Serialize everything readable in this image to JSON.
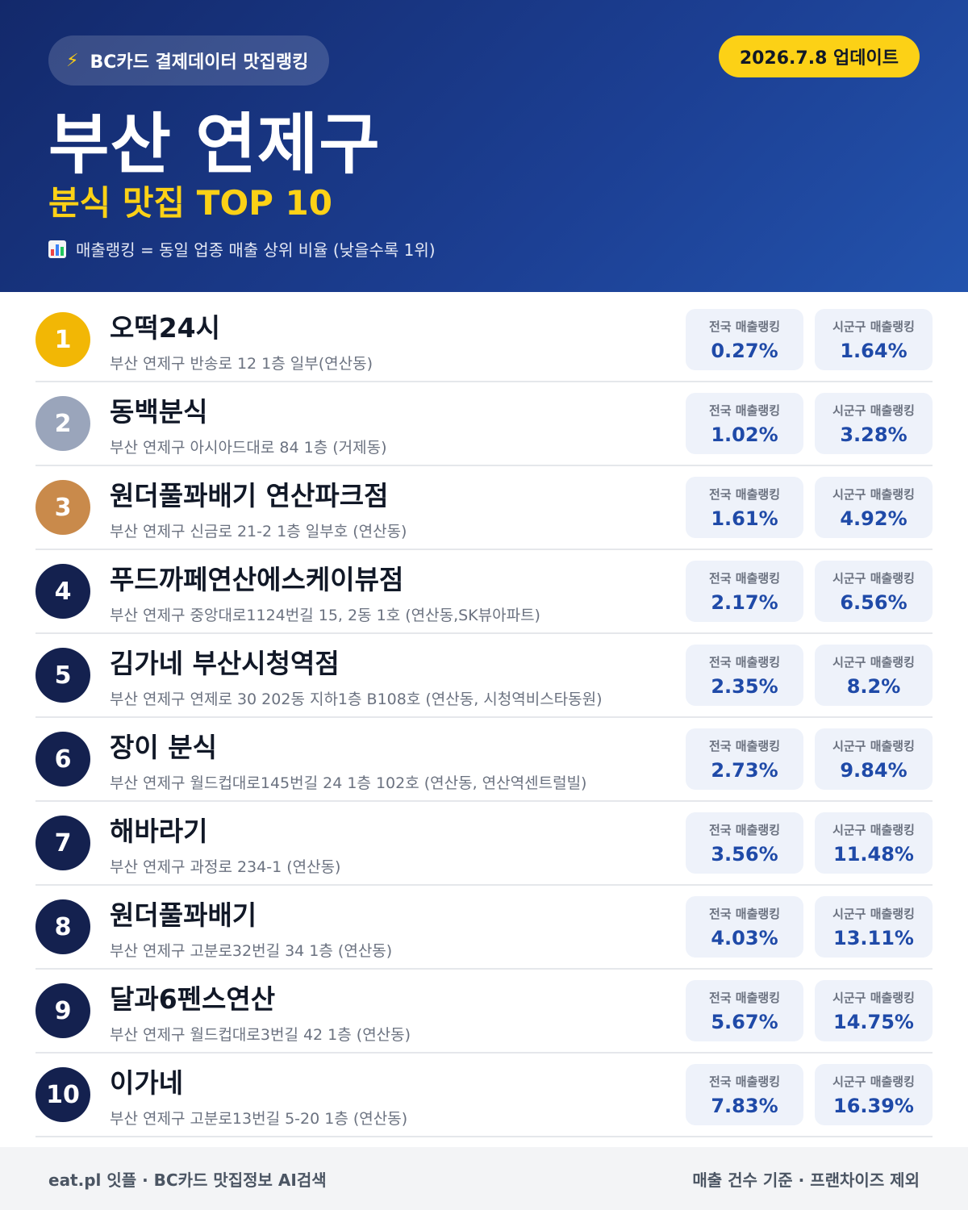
{
  "header": {
    "badge_icon": "lightning-icon",
    "badge_text": "BC카드 결제데이터 맛집랭킹",
    "update_text": "2026.7.8 업데이트",
    "title": "부산 연제구",
    "subtitle": "분식 맛집 TOP 10",
    "note_icon": "bar-chart-icon",
    "note": "매출랭킹 = 동일 업종 매출 상위 비율 (낮을수록 1위)"
  },
  "colors": {
    "header_bg": "#1c3f93",
    "accent_yellow": "#fcd116",
    "rank_gold": "#f2b705",
    "rank_silver": "#9aa5bb",
    "rank_bronze": "#c98a4b",
    "rank_default": "#14214f",
    "value_blue": "#1f4aa8"
  },
  "labels": {
    "national": "전국 매출랭킹",
    "district": "시군구 매출랭킹"
  },
  "items": [
    {
      "rank": "1",
      "name": "오떡24시",
      "address": "부산 연제구 반송로 12 1층 일부(연산동)",
      "national": "0.27%",
      "district": "1.64%"
    },
    {
      "rank": "2",
      "name": "동백분식",
      "address": "부산 연제구 아시아드대로 84 1층 (거제동)",
      "national": "1.02%",
      "district": "3.28%"
    },
    {
      "rank": "3",
      "name": "원더풀꽈배기 연산파크점",
      "address": "부산 연제구 신금로 21-2 1층 일부호 (연산동)",
      "national": "1.61%",
      "district": "4.92%"
    },
    {
      "rank": "4",
      "name": "푸드까페연산에스케이뷰점",
      "address": "부산 연제구 중앙대로1124번길 15, 2동 1호 (연산동,SK뷰아파트)",
      "national": "2.17%",
      "district": "6.56%"
    },
    {
      "rank": "5",
      "name": "김가네 부산시청역점",
      "address": "부산 연제구 연제로 30 202동 지하1층 B108호 (연산동, 시청역비스타동원)",
      "national": "2.35%",
      "district": "8.2%"
    },
    {
      "rank": "6",
      "name": "장이 분식",
      "address": "부산 연제구 월드컵대로145번길 24 1층 102호 (연산동, 연산역센트럴빌)",
      "national": "2.73%",
      "district": "9.84%"
    },
    {
      "rank": "7",
      "name": "해바라기",
      "address": "부산 연제구 과정로 234-1 (연산동)",
      "national": "3.56%",
      "district": "11.48%"
    },
    {
      "rank": "8",
      "name": "원더풀꽈배기",
      "address": "부산 연제구 고분로32번길 34 1층 (연산동)",
      "national": "4.03%",
      "district": "13.11%"
    },
    {
      "rank": "9",
      "name": "달과6펜스연산",
      "address": "부산 연제구 월드컵대로3번길 42 1층 (연산동)",
      "national": "5.67%",
      "district": "14.75%"
    },
    {
      "rank": "10",
      "name": "이가네",
      "address": "부산 연제구 고분로13번길 5-20 1층 (연산동)",
      "national": "7.83%",
      "district": "16.39%"
    }
  ],
  "footer": {
    "left": "eat.pl 잇플 · BC카드 맛집정보 AI검색",
    "right": "매출 건수 기준 · 프랜차이즈 제외"
  }
}
